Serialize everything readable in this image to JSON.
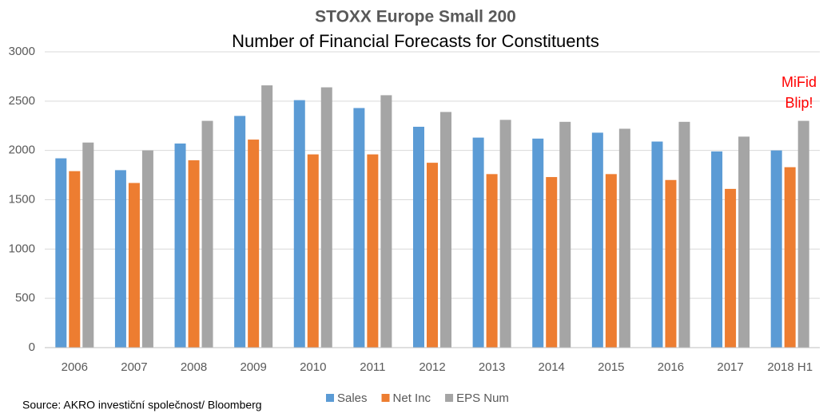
{
  "chart_data": {
    "type": "bar",
    "title": "STOXX Europe Small 200",
    "subtitle": "Number of Financial Forecasts for Constituents",
    "categories": [
      "2006",
      "2007",
      "2008",
      "2009",
      "2010",
      "2011",
      "2012",
      "2013",
      "2014",
      "2015",
      "2016",
      "2017",
      "2018 H1"
    ],
    "series": [
      {
        "name": "Sales",
        "color": "#5b9bd5",
        "values": [
          1920,
          1800,
          2070,
          2350,
          2510,
          2430,
          2240,
          2130,
          2120,
          2180,
          2090,
          1990,
          2000
        ]
      },
      {
        "name": "Net Inc",
        "color": "#ed7d31",
        "values": [
          1790,
          1670,
          1900,
          2110,
          1960,
          1960,
          1875,
          1760,
          1730,
          1760,
          1700,
          1610,
          1830
        ]
      },
      {
        "name": "EPS Num",
        "color": "#a5a5a5",
        "values": [
          2080,
          2000,
          2300,
          2660,
          2640,
          2560,
          2390,
          2310,
          2290,
          2220,
          2290,
          2140,
          2300
        ]
      }
    ],
    "ylim": [
      0,
      3000
    ],
    "yticks": [
      0,
      500,
      1000,
      1500,
      2000,
      2500,
      3000
    ],
    "grid": true,
    "legend": "bottom",
    "annotation": [
      "MiFid",
      "Blip!"
    ],
    "annotation_color": "#ff0000",
    "source": "Source: AKRO investiční společnost/ Bloomberg"
  }
}
